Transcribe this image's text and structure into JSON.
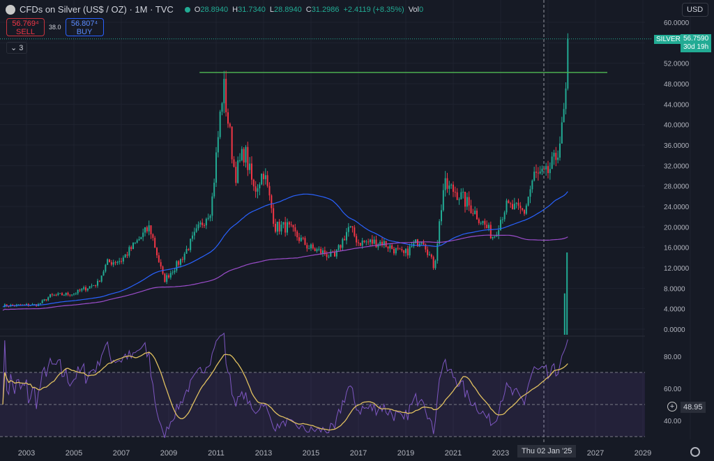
{
  "header": {
    "title": "CFDs on Silver (US$ / OZ) · 1M · TVC",
    "open_label": "O",
    "open": "28.8940",
    "high_label": "H",
    "high": "31.7340",
    "low_label": "L",
    "low": "28.8940",
    "close_label": "C",
    "close": "31.2986",
    "change": "+2.4119 (+8.35%)",
    "vol_label": "Vol",
    "vol": "0"
  },
  "trade": {
    "sell_price": "56.769⁴",
    "sell_label": "SELL",
    "spread": "38.0",
    "buy_price": "56.807⁴",
    "buy_label": "BUY"
  },
  "indicators_collapse": "⌄ 3",
  "currency": "USD",
  "price_tag": {
    "symbol": "SILVER",
    "price": "56.7590",
    "countdown": "30d 19h"
  },
  "rsi_value": "48.95",
  "crosshair_date": "Thu 02 Jan '25",
  "colors": {
    "up": "#22ab94",
    "down": "#f23645",
    "ma_fast": "#2962ff",
    "ma_slow": "#9c4dcc",
    "resistance": "#4caf50",
    "rsi": "#7e57c2",
    "rsi_ma": "#e0c060"
  },
  "chart_data": {
    "type": "candlestick",
    "price_axis": {
      "ticks": [
        "60.0000",
        "52.0000",
        "48.0000",
        "44.0000",
        "40.0000",
        "36.0000",
        "32.0000",
        "28.0000",
        "24.0000",
        "20.0000",
        "16.0000",
        "12.0000",
        "8.0000",
        "4.0000",
        "0.0000"
      ],
      "range": [
        0,
        60
      ]
    },
    "rsi_axis": {
      "ticks": [
        "80.00",
        "60.00",
        "40.00"
      ],
      "bands": [
        70,
        50,
        30
      ]
    },
    "time_axis": {
      "ticks": [
        "2003",
        "2005",
        "2007",
        "2009",
        "2011",
        "2013",
        "2015",
        "2017",
        "2019",
        "2021",
        "2023",
        "2027",
        "2029"
      ]
    },
    "resistance_level": 50.2,
    "resistance_span": [
      2010.3,
      2027.5
    ],
    "crosshair_year": 2025.0,
    "close_path": [
      [
        2002.0,
        4.6
      ],
      [
        2003.5,
        4.8
      ],
      [
        2004.0,
        6.5
      ],
      [
        2005.0,
        7
      ],
      [
        2006.0,
        9
      ],
      [
        2006.4,
        13
      ],
      [
        2007.0,
        13.5
      ],
      [
        2008.2,
        20
      ],
      [
        2008.8,
        9.5
      ],
      [
        2009.5,
        13.5
      ],
      [
        2010.0,
        17.5
      ],
      [
        2010.8,
        24
      ],
      [
        2011.3,
        48
      ],
      [
        2011.8,
        30
      ],
      [
        2012.2,
        35
      ],
      [
        2012.6,
        27
      ],
      [
        2013.0,
        31
      ],
      [
        2013.5,
        20
      ],
      [
        2014.0,
        20
      ],
      [
        2014.9,
        16
      ],
      [
        2015.5,
        15
      ],
      [
        2016.0,
        14
      ],
      [
        2016.6,
        20
      ],
      [
        2017.0,
        17
      ],
      [
        2018.0,
        17
      ],
      [
        2018.9,
        14.5
      ],
      [
        2019.7,
        18
      ],
      [
        2020.2,
        12
      ],
      [
        2020.6,
        28
      ],
      [
        2021.1,
        27
      ],
      [
        2021.9,
        23
      ],
      [
        2022.7,
        18
      ],
      [
        2023.2,
        24
      ],
      [
        2024.0,
        23
      ],
      [
        2024.4,
        30
      ],
      [
        2024.9,
        30
      ],
      [
        2025.3,
        33
      ],
      [
        2025.6,
        39
      ],
      [
        2025.8,
        48
      ],
      [
        2025.9,
        56.76
      ]
    ],
    "volume_spikes": [
      [
        2025.7,
        7
      ],
      [
        2025.8,
        15
      ]
    ]
  }
}
